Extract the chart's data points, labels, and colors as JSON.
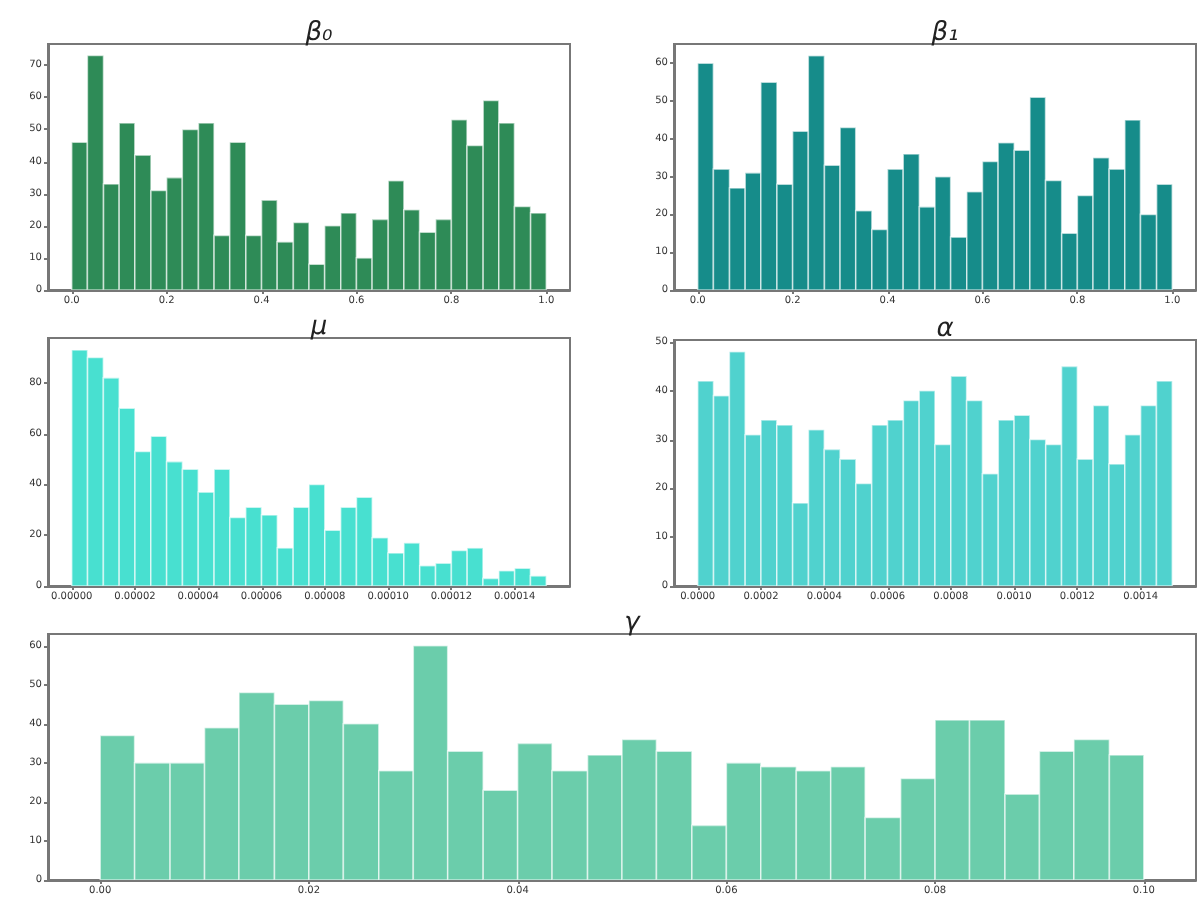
{
  "chart_data": [
    {
      "type": "histogram",
      "title": "β₀",
      "color": "#2e8b57",
      "bins": [
        0,
        0.033,
        0.067,
        0.1,
        0.133,
        0.167,
        0.2,
        0.233,
        0.267,
        0.3,
        0.333,
        0.367,
        0.4,
        0.433,
        0.467,
        0.5,
        0.533,
        0.567,
        0.6,
        0.633,
        0.667,
        0.7,
        0.733,
        0.767,
        0.8,
        0.833,
        0.867,
        0.9,
        0.933,
        0.967,
        1
      ],
      "values": [
        46,
        73,
        33,
        52,
        42,
        31,
        35,
        50,
        52,
        17,
        46,
        17,
        28,
        15,
        21,
        8,
        20,
        24,
        10,
        22,
        34,
        25,
        18,
        22,
        53,
        45,
        59,
        52,
        26,
        24
      ],
      "xlim": [
        -0.05,
        1.05
      ],
      "xticks": [
        {
          "value": 0,
          "label": "0.0"
        },
        0.2,
        0.4,
        0.6,
        0.8,
        {
          "value": 1,
          "label": "1.0"
        }
      ],
      "ylim": [
        0,
        76.6
      ],
      "yticks": [
        0,
        10,
        20,
        30,
        40,
        50,
        60,
        70
      ]
    },
    {
      "type": "histogram",
      "title": "β₁",
      "color": "#168c8a",
      "bins": [
        0,
        0.033,
        0.067,
        0.1,
        0.133,
        0.167,
        0.2,
        0.233,
        0.267,
        0.3,
        0.333,
        0.367,
        0.4,
        0.433,
        0.467,
        0.5,
        0.533,
        0.567,
        0.6,
        0.633,
        0.667,
        0.7,
        0.733,
        0.767,
        0.8,
        0.833,
        0.867,
        0.9,
        0.933,
        0.967,
        1
      ],
      "values": [
        60,
        32,
        27,
        31,
        55,
        28,
        42,
        62,
        33,
        43,
        21,
        16,
        32,
        36,
        22,
        30,
        14,
        26,
        34,
        39,
        37,
        51,
        29,
        15,
        25,
        35,
        32,
        45,
        20,
        28
      ],
      "xlim": [
        -0.05,
        1.05
      ],
      "xticks": [
        {
          "value": 0,
          "label": "0.0"
        },
        0.2,
        0.4,
        0.6,
        0.8,
        {
          "value": 1,
          "label": "1.0"
        }
      ],
      "ylim": [
        0,
        65.1
      ],
      "yticks": [
        0,
        10,
        20,
        30,
        40,
        50,
        60
      ]
    },
    {
      "type": "histogram",
      "title": "μ",
      "color": "#48e0d0",
      "bins": [
        0,
        5e-06,
        1e-05,
        1.5e-05,
        2e-05,
        2.5e-05,
        3e-05,
        3.5e-05,
        4e-05,
        4.5e-05,
        5e-05,
        5.5e-05,
        6e-05,
        6.5e-05,
        7e-05,
        7.5e-05,
        8e-05,
        8.5e-05,
        9e-05,
        9.5e-05,
        0.0001,
        0.000105,
        0.00011,
        0.000115,
        0.00012,
        0.000125,
        0.00013,
        0.000135,
        0.00014,
        0.000145,
        0.00015
      ],
      "values": [
        93,
        90,
        82,
        70,
        53,
        59,
        49,
        46,
        37,
        46,
        27,
        31,
        28,
        15,
        31,
        40,
        22,
        31,
        35,
        19,
        13,
        17,
        8,
        9,
        14,
        15,
        3,
        6,
        7,
        4
      ],
      "xlim": [
        -7.5e-06,
        0.0001575
      ],
      "xticks": [
        {
          "value": 0,
          "label": "0.00000"
        },
        {
          "value": 2e-05,
          "label": "0.00002"
        },
        {
          "value": 4e-05,
          "label": "0.00004"
        },
        {
          "value": 6e-05,
          "label": "0.00006"
        },
        {
          "value": 8e-05,
          "label": "0.00008"
        },
        {
          "value": 0.0001,
          "label": "0.00010"
        },
        {
          "value": 0.00012,
          "label": "0.00012"
        },
        {
          "value": 0.00014,
          "label": "0.00014"
        }
      ],
      "ylim": [
        0,
        97.7
      ],
      "yticks": [
        0,
        20,
        40,
        60,
        80
      ]
    },
    {
      "type": "histogram",
      "title": "α",
      "color": "#50d2ce",
      "bins": [
        0,
        5e-05,
        0.0001,
        0.00015,
        0.0002,
        0.00025,
        0.0003,
        0.00035,
        0.0004,
        0.00045,
        0.0005,
        0.00055,
        0.0006,
        0.00065,
        0.0007,
        0.00075,
        0.0008,
        0.00085,
        0.0009,
        0.00095,
        0.001,
        0.00105,
        0.0011,
        0.00115,
        0.0012,
        0.00125,
        0.0013,
        0.00135,
        0.0014,
        0.00145,
        0.0015
      ],
      "values": [
        42,
        39,
        48,
        31,
        34,
        33,
        17,
        32,
        28,
        26,
        21,
        33,
        34,
        38,
        40,
        29,
        43,
        38,
        23,
        34,
        35,
        30,
        29,
        45,
        26,
        37,
        25,
        31,
        37,
        42
      ],
      "xlim": [
        -7.5e-05,
        0.001575
      ],
      "xticks": [
        {
          "value": 0,
          "label": "0.0000"
        },
        {
          "value": 0.0002,
          "label": "0.0002"
        },
        {
          "value": 0.0004,
          "label": "0.0004"
        },
        {
          "value": 0.0006,
          "label": "0.0006"
        },
        {
          "value": 0.0008,
          "label": "0.0008"
        },
        {
          "value": 0.001,
          "label": "0.0010"
        },
        {
          "value": 0.0012,
          "label": "0.0012"
        },
        {
          "value": 0.0014,
          "label": "0.0014"
        }
      ],
      "ylim": [
        0,
        50.4
      ],
      "yticks": [
        0,
        10,
        20,
        30,
        40,
        50
      ]
    },
    {
      "type": "histogram",
      "title": "γ",
      "color": "#6bcdab",
      "bins": [
        0,
        0.0033,
        0.0067,
        0.01,
        0.0133,
        0.0167,
        0.02,
        0.0233,
        0.0267,
        0.03,
        0.0333,
        0.0367,
        0.04,
        0.0433,
        0.0467,
        0.05,
        0.0533,
        0.0567,
        0.06,
        0.0633,
        0.0667,
        0.07,
        0.0733,
        0.0767,
        0.08,
        0.0833,
        0.0867,
        0.09,
        0.0933,
        0.0967,
        0.1
      ],
      "values": [
        37,
        30,
        30,
        39,
        48,
        45,
        46,
        40,
        28,
        60,
        33,
        23,
        35,
        28,
        32,
        36,
        33,
        14,
        30,
        29,
        28,
        29,
        16,
        26,
        41,
        41,
        22,
        33,
        36,
        32
      ],
      "xlim": [
        -0.005,
        0.105
      ],
      "xticks": [
        {
          "value": 0,
          "label": "0.00"
        },
        {
          "value": 0.02,
          "label": "0.02"
        },
        {
          "value": 0.04,
          "label": "0.04"
        },
        {
          "value": 0.06,
          "label": "0.06"
        },
        {
          "value": 0.08,
          "label": "0.08"
        },
        {
          "value": 0.1,
          "label": "0.10"
        }
      ],
      "ylim": [
        0,
        63
      ],
      "yticks": [
        0,
        10,
        20,
        30,
        40,
        50,
        60
      ]
    }
  ]
}
